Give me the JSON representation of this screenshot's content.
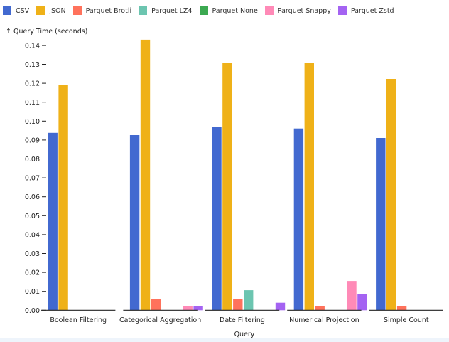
{
  "chart_data": {
    "type": "bar",
    "title": "",
    "xlabel": "Query",
    "ylabel": "↑ Query Time (seconds)",
    "ylim": [
      0,
      0.145
    ],
    "yticks": [
      0.0,
      0.01,
      0.02,
      0.03,
      0.04,
      0.05,
      0.06,
      0.07,
      0.08,
      0.09,
      0.1,
      0.11,
      0.12,
      0.13,
      0.14
    ],
    "ytick_labels": [
      "0.00",
      "0.01",
      "0.02",
      "0.03",
      "0.04",
      "0.05",
      "0.06",
      "0.07",
      "0.08",
      "0.09",
      "0.10",
      "0.11",
      "0.12",
      "0.13",
      "0.14"
    ],
    "grid": false,
    "legend_position": "top-left",
    "categories": [
      "Boolean Filtering",
      "Categorical Aggregation",
      "Date Filtering",
      "Numerical Projection",
      "Simple Count"
    ],
    "series": [
      {
        "name": "CSV",
        "color": "#4269d0",
        "values": [
          0.0938,
          0.0926,
          0.0971,
          0.0961,
          0.0911
        ]
      },
      {
        "name": "JSON",
        "color": "#efb118",
        "values": [
          0.119,
          0.143,
          0.1306,
          0.1309,
          0.1223
        ]
      },
      {
        "name": "Parquet Brotli",
        "color": "#ff725c",
        "values": [
          0.0,
          0.0059,
          0.0061,
          0.0021,
          0.002
        ]
      },
      {
        "name": "Parquet LZ4",
        "color": "#6cc5b0",
        "values": [
          0.0,
          0.0,
          0.0106,
          0.0,
          0.0
        ]
      },
      {
        "name": "Parquet None",
        "color": "#3ca951",
        "values": [
          0.0,
          0.0,
          0.0,
          0.0,
          0.0
        ]
      },
      {
        "name": "Parquet Snappy",
        "color": "#ff8ab7",
        "values": [
          0.0,
          0.0021,
          0.0,
          0.0155,
          0.0
        ]
      },
      {
        "name": "Parquet Zstd",
        "color": "#a463f2",
        "values": [
          0.0,
          0.0021,
          0.004,
          0.0085,
          0.0
        ]
      }
    ]
  }
}
